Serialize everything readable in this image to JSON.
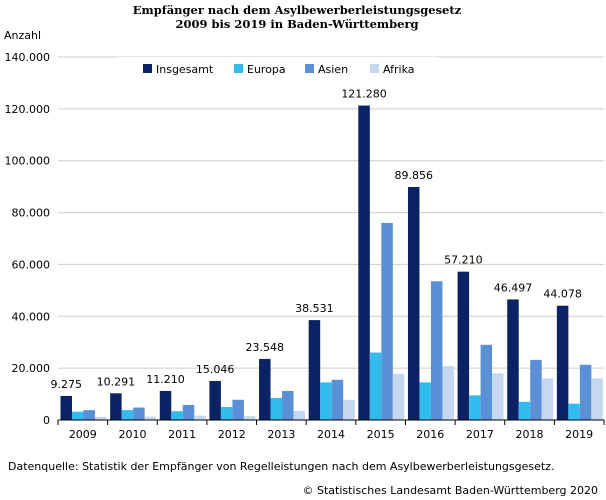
{
  "chart_data": {
    "type": "bar",
    "title": "Empfänger nach dem Asylbewerberleistungsgesetz",
    "subtitle": "2009 bis 2019 in Baden-Württemberg",
    "ylabel": "Anzahl",
    "xlabel": "",
    "ylim": [
      0,
      140000
    ],
    "yticks": [
      0,
      20000,
      40000,
      60000,
      80000,
      100000,
      120000,
      140000
    ],
    "ytick_labels": [
      "0",
      "20.000",
      "40.000",
      "60.000",
      "80.000",
      "100.000",
      "120.000",
      "140.000"
    ],
    "categories": [
      "2009",
      "2010",
      "2011",
      "2012",
      "2013",
      "2014",
      "2015",
      "2016",
      "2017",
      "2018",
      "2019"
    ],
    "series": [
      {
        "name": "Insgesamt",
        "color": "#0b2265",
        "values": [
          9275,
          10291,
          11210,
          15046,
          23548,
          38531,
          121280,
          89856,
          57210,
          46497,
          44078
        ],
        "labels": [
          "9.275",
          "10.291",
          "11.210",
          "15.046",
          "23.548",
          "38.531",
          "121.280",
          "89.856",
          "57.210",
          "46.497",
          "44.078"
        ]
      },
      {
        "name": "Europa",
        "color": "#33bbee",
        "values": [
          3200,
          3800,
          3400,
          5000,
          8500,
          14500,
          26000,
          14500,
          9500,
          7000,
          6300
        ]
      },
      {
        "name": "Asien",
        "color": "#5b8fd6",
        "values": [
          3800,
          4800,
          5800,
          7800,
          11200,
          15500,
          76000,
          53500,
          29000,
          23200,
          21300
        ]
      },
      {
        "name": "Afrika",
        "color": "#c6d7f0",
        "values": [
          1200,
          1300,
          1700,
          1500,
          3500,
          7800,
          17800,
          20800,
          18000,
          16000,
          16000
        ]
      }
    ],
    "legend_position": "top",
    "grid": true
  },
  "footer": {
    "source": "Datenquelle: Statistik der Empfänger von Regelleistungen nach dem Asylbewerberleistungsgesetz.",
    "copyright": "© Statistisches Landesamt Baden-Württemberg 2020"
  }
}
